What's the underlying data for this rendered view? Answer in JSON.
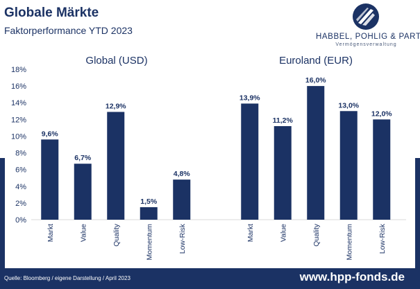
{
  "header": {
    "title": "Globale Märkte",
    "subtitle": "Faktorperformance YTD 2023"
  },
  "logo": {
    "name": "HABBEL, POHLIG & PARTNER",
    "tagline": "Vermögensverwaltung"
  },
  "footer": {
    "source": "Quelle: Bloomberg / eigene Darstellung / April 2023",
    "url": "www.hpp-fonds.de"
  },
  "colors": {
    "bar": "#1b3264",
    "text": "#1b3264",
    "grid": "#d9d9d9"
  },
  "chart_data": {
    "type": "bar",
    "ylim": [
      0,
      18
    ],
    "yticks": [
      "0%",
      "2%",
      "4%",
      "6%",
      "8%",
      "10%",
      "12%",
      "14%",
      "16%",
      "18%"
    ],
    "grid": false,
    "panels": [
      {
        "title": "Global (USD)",
        "categories": [
          "Markt",
          "Value",
          "Quality",
          "Momentum",
          "Low-Risk"
        ],
        "values": [
          9.6,
          6.7,
          12.9,
          1.5,
          4.8
        ],
        "labels": [
          "9,6%",
          "6,7%",
          "12,9%",
          "1,5%",
          "4,8%"
        ]
      },
      {
        "title": "Euroland (EUR)",
        "categories": [
          "Markt",
          "Value",
          "Quality",
          "Momentum",
          "Low-Risk"
        ],
        "values": [
          13.9,
          11.2,
          16.0,
          13.0,
          12.0
        ],
        "labels": [
          "13,9%",
          "11,2%",
          "16,0%",
          "13,0%",
          "12,0%"
        ]
      }
    ]
  }
}
